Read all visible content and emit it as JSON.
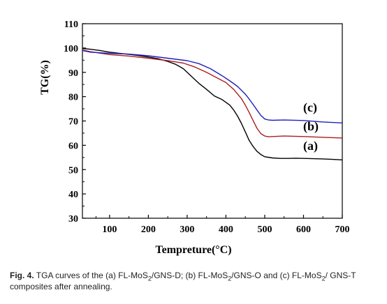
{
  "chart_data": {
    "type": "line",
    "xlabel": "Tempreture(°C)",
    "ylabel": "TG(%)",
    "xlim": [
      30,
      700
    ],
    "ylim": [
      30,
      110
    ],
    "x_ticks": [
      100,
      200,
      300,
      400,
      500,
      600,
      700
    ],
    "y_ticks": [
      30,
      40,
      50,
      60,
      70,
      80,
      90,
      100,
      110
    ],
    "grid": false,
    "series": [
      {
        "name": "(a)",
        "color": "#000000",
        "x": [
          30,
          50,
          75,
          100,
          125,
          150,
          175,
          200,
          225,
          250,
          270,
          290,
          310,
          330,
          350,
          370,
          390,
          410,
          420,
          430,
          440,
          450,
          460,
          470,
          480,
          490,
          500,
          520,
          540,
          560,
          580,
          600,
          625,
          650,
          675,
          700
        ],
        "y": [
          99.8,
          99.5,
          99.0,
          98.3,
          97.8,
          97.4,
          96.9,
          96.3,
          95.6,
          94.5,
          93.3,
          91.5,
          88.5,
          85.5,
          83.0,
          80.3,
          78.8,
          76.5,
          74.5,
          72.0,
          69.0,
          65.5,
          62.0,
          59.5,
          57.5,
          56.2,
          55.3,
          54.8,
          54.6,
          54.6,
          54.7,
          54.6,
          54.5,
          54.4,
          54.2,
          54.0
        ]
      },
      {
        "name": "(b)",
        "color": "#aa1e1e",
        "x": [
          30,
          50,
          100,
          150,
          200,
          250,
          290,
          320,
          350,
          380,
          400,
          420,
          440,
          450,
          460,
          470,
          480,
          490,
          500,
          510,
          520,
          550,
          600,
          650,
          700
        ],
        "y": [
          99.2,
          98.5,
          97.3,
          96.7,
          95.8,
          94.8,
          93.8,
          92.2,
          90.0,
          87.5,
          85.8,
          83.0,
          79.2,
          76.5,
          73.5,
          70.2,
          67.0,
          64.8,
          63.8,
          63.5,
          63.6,
          63.8,
          63.6,
          63.3,
          63.0
        ]
      },
      {
        "name": "(c)",
        "color": "#1f1fbf",
        "x": [
          30,
          50,
          100,
          150,
          200,
          250,
          300,
          330,
          360,
          390,
          410,
          430,
          450,
          460,
          470,
          480,
          490,
          500,
          510,
          520,
          550,
          600,
          650,
          700
        ],
        "y": [
          99.0,
          98.3,
          97.8,
          97.5,
          96.8,
          95.8,
          94.8,
          93.6,
          91.5,
          88.6,
          86.5,
          84.2,
          81.0,
          79.0,
          76.8,
          74.5,
          72.3,
          70.8,
          70.4,
          70.3,
          70.4,
          70.2,
          69.6,
          69.2
        ]
      }
    ]
  },
  "caption": {
    "fig_label": "Fig. 4.",
    "parts": [
      " TGA curves of the (a) FL-MoS",
      "2",
      "/GNS-D; (b) FL-MoS",
      "2",
      "/GNS-O and (c) FL-MoS",
      "2",
      "/ GNS-T composites after annealing."
    ]
  }
}
